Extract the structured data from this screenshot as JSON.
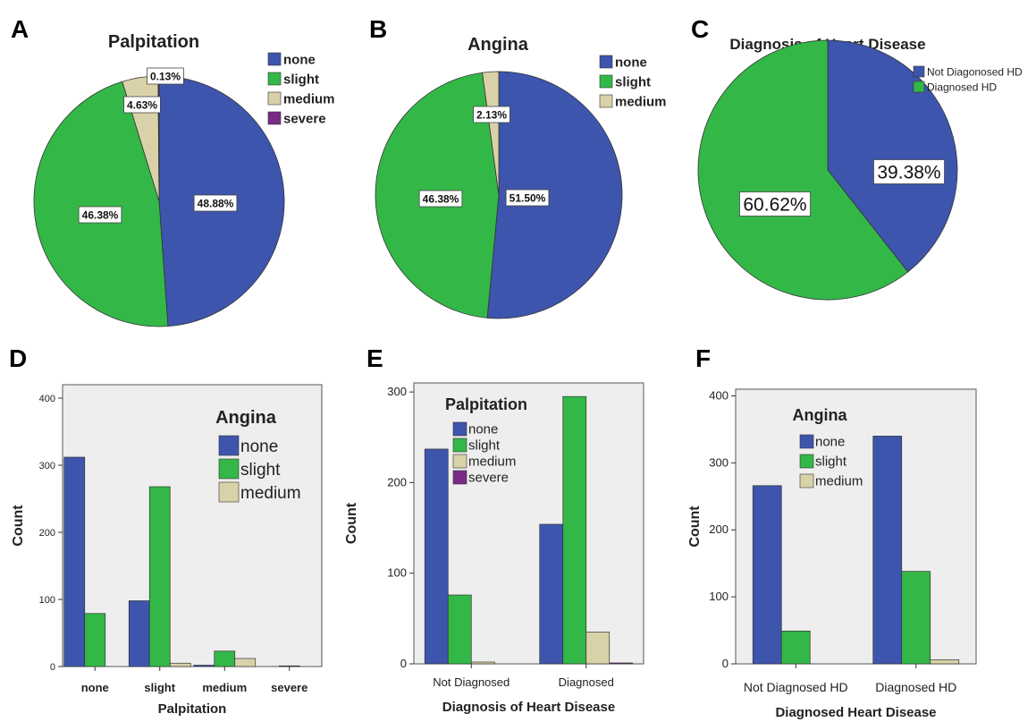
{
  "colors": {
    "none": "#3d55ad",
    "slight": "#33b848",
    "medium": "#d9d2a8",
    "severe": "#7a2a86",
    "plot_bg": "#eeeeee",
    "frame": "#555555"
  },
  "chart_data": [
    {
      "panel": "A",
      "type": "pie",
      "title": "Palpitation",
      "labels": [
        "none",
        "slight",
        "medium",
        "severe"
      ],
      "values": [
        48.88,
        46.38,
        4.63,
        0.13
      ],
      "value_labels": [
        "48.88%",
        "46.38%",
        "4.63%",
        "0.13%"
      ],
      "legend": "top-right"
    },
    {
      "panel": "B",
      "type": "pie",
      "title": "Angina",
      "labels": [
        "none",
        "slight",
        "medium"
      ],
      "values": [
        51.5,
        46.38,
        2.13
      ],
      "value_labels": [
        "51.50%",
        "46.38%",
        "2.13%"
      ],
      "legend": "top-right"
    },
    {
      "panel": "C",
      "type": "pie",
      "title": "Diagnosis of  Heart Disease",
      "labels": [
        "Not Diagonosed HD",
        "Diagnosed HD"
      ],
      "values": [
        39.38,
        60.62
      ],
      "value_labels": [
        "39.38%",
        "60.62%"
      ],
      "legend": "top-right"
    },
    {
      "panel": "D",
      "type": "bar",
      "categories": [
        "none",
        "slight",
        "medium",
        "severe"
      ],
      "series": [
        {
          "name": "none",
          "values": [
            312,
            98,
            2,
            0
          ]
        },
        {
          "name": "slight",
          "values": [
            79,
            268,
            23,
            1
          ]
        },
        {
          "name": "medium",
          "values": [
            0,
            5,
            12,
            0
          ]
        }
      ],
      "legend_title": "Angina",
      "xlabel": "Palpitation",
      "ylabel": "Count",
      "ylim": [
        0,
        420
      ],
      "yticks": [
        0,
        100,
        200,
        300,
        400
      ],
      "legend": "top-right"
    },
    {
      "panel": "E",
      "type": "bar",
      "categories": [
        "Not Diagnosed",
        "Diagnosed"
      ],
      "series": [
        {
          "name": "none",
          "values": [
            237,
            154
          ]
        },
        {
          "name": "slight",
          "values": [
            76,
            295
          ]
        },
        {
          "name": "medium",
          "values": [
            2,
            35
          ]
        },
        {
          "name": "severe",
          "values": [
            0,
            1
          ]
        }
      ],
      "legend_title": "Palpitation",
      "xlabel": "Diagnosis of Heart Disease",
      "ylabel": "Count",
      "ylim": [
        0,
        310
      ],
      "yticks": [
        0,
        100,
        200,
        300
      ],
      "legend": "top-left"
    },
    {
      "panel": "F",
      "type": "bar",
      "categories": [
        "Not Diagnosed   HD",
        "Diagnosed HD"
      ],
      "series": [
        {
          "name": "none",
          "values": [
            266,
            340
          ]
        },
        {
          "name": "slight",
          "values": [
            49,
            138
          ]
        },
        {
          "name": "medium",
          "values": [
            0,
            6
          ]
        }
      ],
      "legend_title": "Angina",
      "xlabel": "Diagnosed Heart Disease",
      "ylabel": "Count",
      "ylim": [
        0,
        410
      ],
      "yticks": [
        0,
        100,
        200,
        300,
        400
      ],
      "legend": "top-left"
    }
  ]
}
